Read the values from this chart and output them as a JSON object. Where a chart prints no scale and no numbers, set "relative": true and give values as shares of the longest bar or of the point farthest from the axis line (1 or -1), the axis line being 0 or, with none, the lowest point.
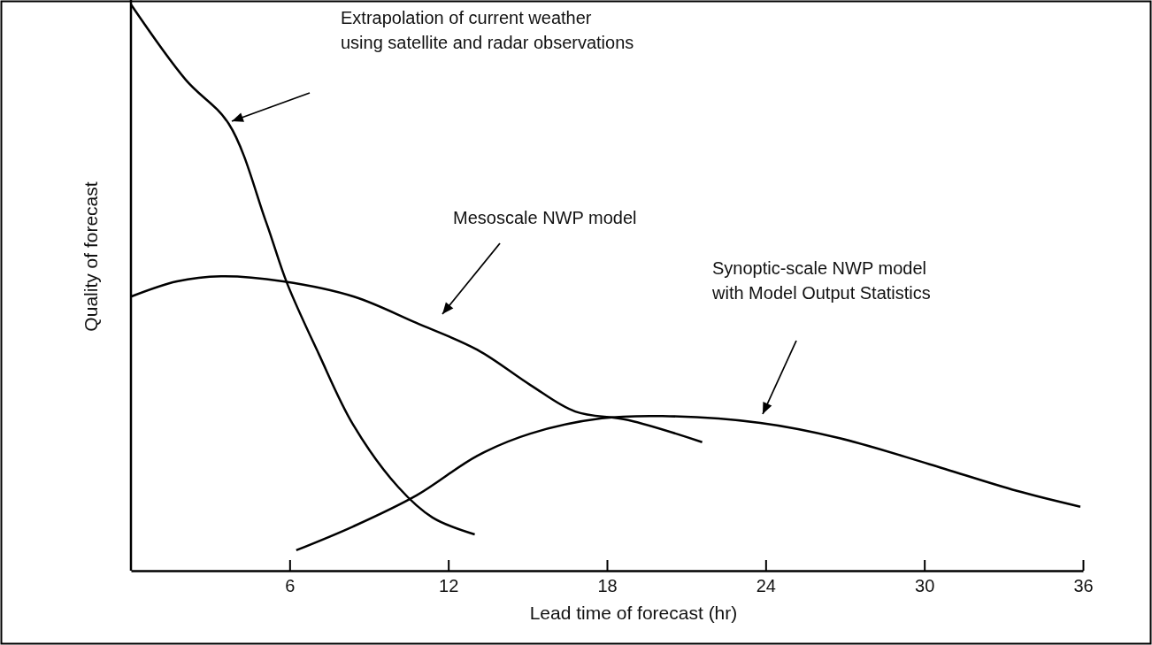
{
  "chart_data": {
    "type": "line",
    "relative": true,
    "xlabel": "Lead time of forecast (hr)",
    "ylabel": "Quality of forecast",
    "xlim": [
      0,
      36
    ],
    "xticks": [
      6,
      12,
      18,
      24,
      30,
      36
    ],
    "line_style": "solid",
    "marker": "none",
    "series": [
      {
        "color": "#000000",
        "x": [
          0,
          2.07,
          3.7,
          5.1,
          5.9,
          7.1,
          8.4,
          10.1,
          11.4,
          13.0
        ],
        "values": [
          1.0,
          0.867,
          0.789,
          0.617,
          0.508,
          0.383,
          0.258,
          0.148,
          0.094,
          0.064
        ]
      },
      {
        "color": "#000000",
        "x": [
          0,
          1.74,
          3.41,
          5.75,
          8.43,
          10.77,
          13.1,
          15.1,
          16.8,
          18.8,
          21.6
        ],
        "values": [
          0.484,
          0.511,
          0.52,
          0.511,
          0.484,
          0.438,
          0.39,
          0.328,
          0.281,
          0.266,
          0.227
        ]
      },
      {
        "color": "#000000",
        "x": [
          6.25,
          8.4,
          10.8,
          13.1,
          15.1,
          17.8,
          20.1,
          23.8,
          26.8,
          30.2,
          33.5,
          35.9
        ],
        "values": [
          0.036,
          0.078,
          0.133,
          0.203,
          0.242,
          0.269,
          0.273,
          0.261,
          0.234,
          0.188,
          0.141,
          0.113
        ]
      }
    ],
    "annotations": [
      "Extrapolation of current weather\nusing satellite and radar observations",
      "Mesoscale NWP model",
      "Synoptic-scale NWP model\nwith Model Output Statistics"
    ]
  }
}
